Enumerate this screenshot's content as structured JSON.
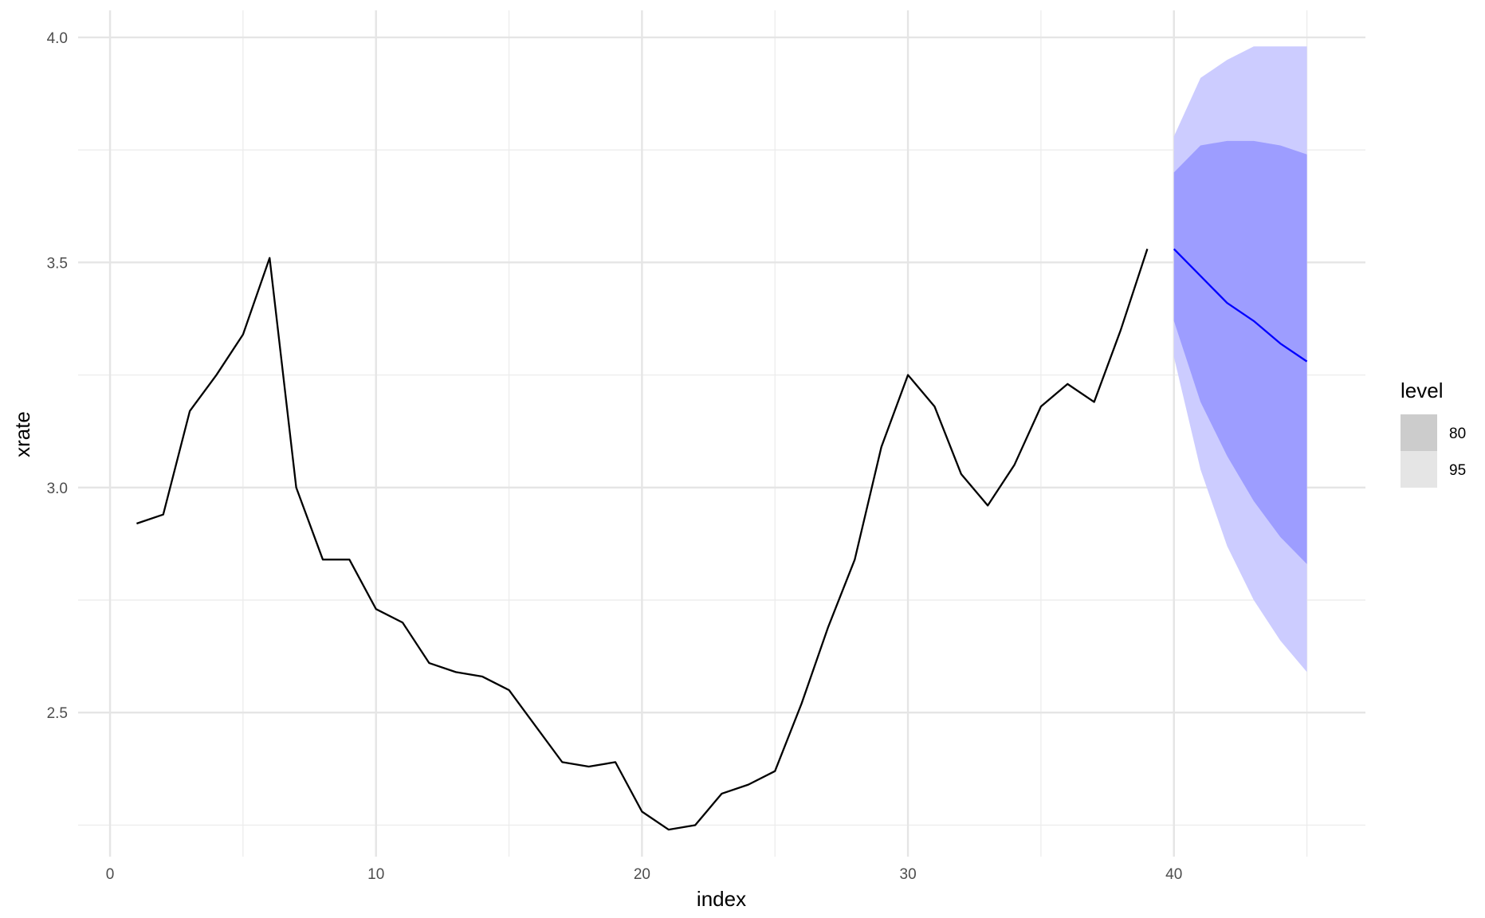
{
  "chart_data": {
    "type": "line",
    "xlabel": "index",
    "ylabel": "xrate",
    "xlim": [
      -1.2,
      47.2
    ],
    "ylim": [
      2.18,
      4.06
    ],
    "x_ticks": [
      0,
      10,
      20,
      30,
      40
    ],
    "x_tick_labels": [
      "0",
      "10",
      "20",
      "30",
      "40"
    ],
    "y_ticks": [
      2.5,
      3.0,
      3.5,
      4.0
    ],
    "y_tick_labels": [
      "2.5",
      "3.0",
      "3.5",
      "4.0"
    ],
    "grid": true,
    "legend": {
      "title": "level",
      "position": "right",
      "entries": [
        {
          "label": "80",
          "color": "#cccccc"
        },
        {
          "label": "95",
          "color": "#e5e5e5"
        }
      ]
    },
    "series": [
      {
        "kind": "observed",
        "color": "#000000",
        "x": [
          1,
          2,
          3,
          4,
          5,
          6,
          7,
          8,
          9,
          10,
          11,
          12,
          13,
          14,
          15,
          16,
          17,
          18,
          19,
          20,
          21,
          22,
          23,
          24,
          25,
          26,
          27,
          28,
          29,
          30,
          31,
          32,
          33,
          34,
          35,
          36,
          37,
          38,
          39
        ],
        "values": [
          2.92,
          2.94,
          3.17,
          3.25,
          3.34,
          3.51,
          3.0,
          2.84,
          2.84,
          2.73,
          2.7,
          2.61,
          2.59,
          2.58,
          2.55,
          2.47,
          2.39,
          2.38,
          2.39,
          2.28,
          2.24,
          2.25,
          2.32,
          2.34,
          2.37,
          2.52,
          2.69,
          2.84,
          3.09,
          3.25,
          3.18,
          3.03,
          2.96,
          3.05,
          3.18,
          3.23,
          3.19,
          3.35,
          3.53
        ]
      },
      {
        "kind": "forecast",
        "color": "#0000ff",
        "x": [
          40,
          41,
          42,
          43,
          44,
          45
        ],
        "values": [
          3.53,
          3.47,
          3.41,
          3.37,
          3.32,
          3.28
        ]
      }
    ],
    "intervals": [
      {
        "level": "95",
        "color": "#ccccff",
        "x": [
          40,
          41,
          42,
          43,
          44,
          45
        ],
        "lower": [
          3.29,
          3.04,
          2.87,
          2.75,
          2.66,
          2.59
        ],
        "upper": [
          3.78,
          3.91,
          3.95,
          3.98,
          3.98,
          3.98
        ]
      },
      {
        "level": "80",
        "color": "#9d9dff",
        "x": [
          40,
          41,
          42,
          43,
          44,
          45
        ],
        "lower": [
          3.37,
          3.19,
          3.07,
          2.97,
          2.89,
          2.83
        ],
        "upper": [
          3.7,
          3.76,
          3.77,
          3.77,
          3.76,
          3.74
        ]
      }
    ]
  }
}
